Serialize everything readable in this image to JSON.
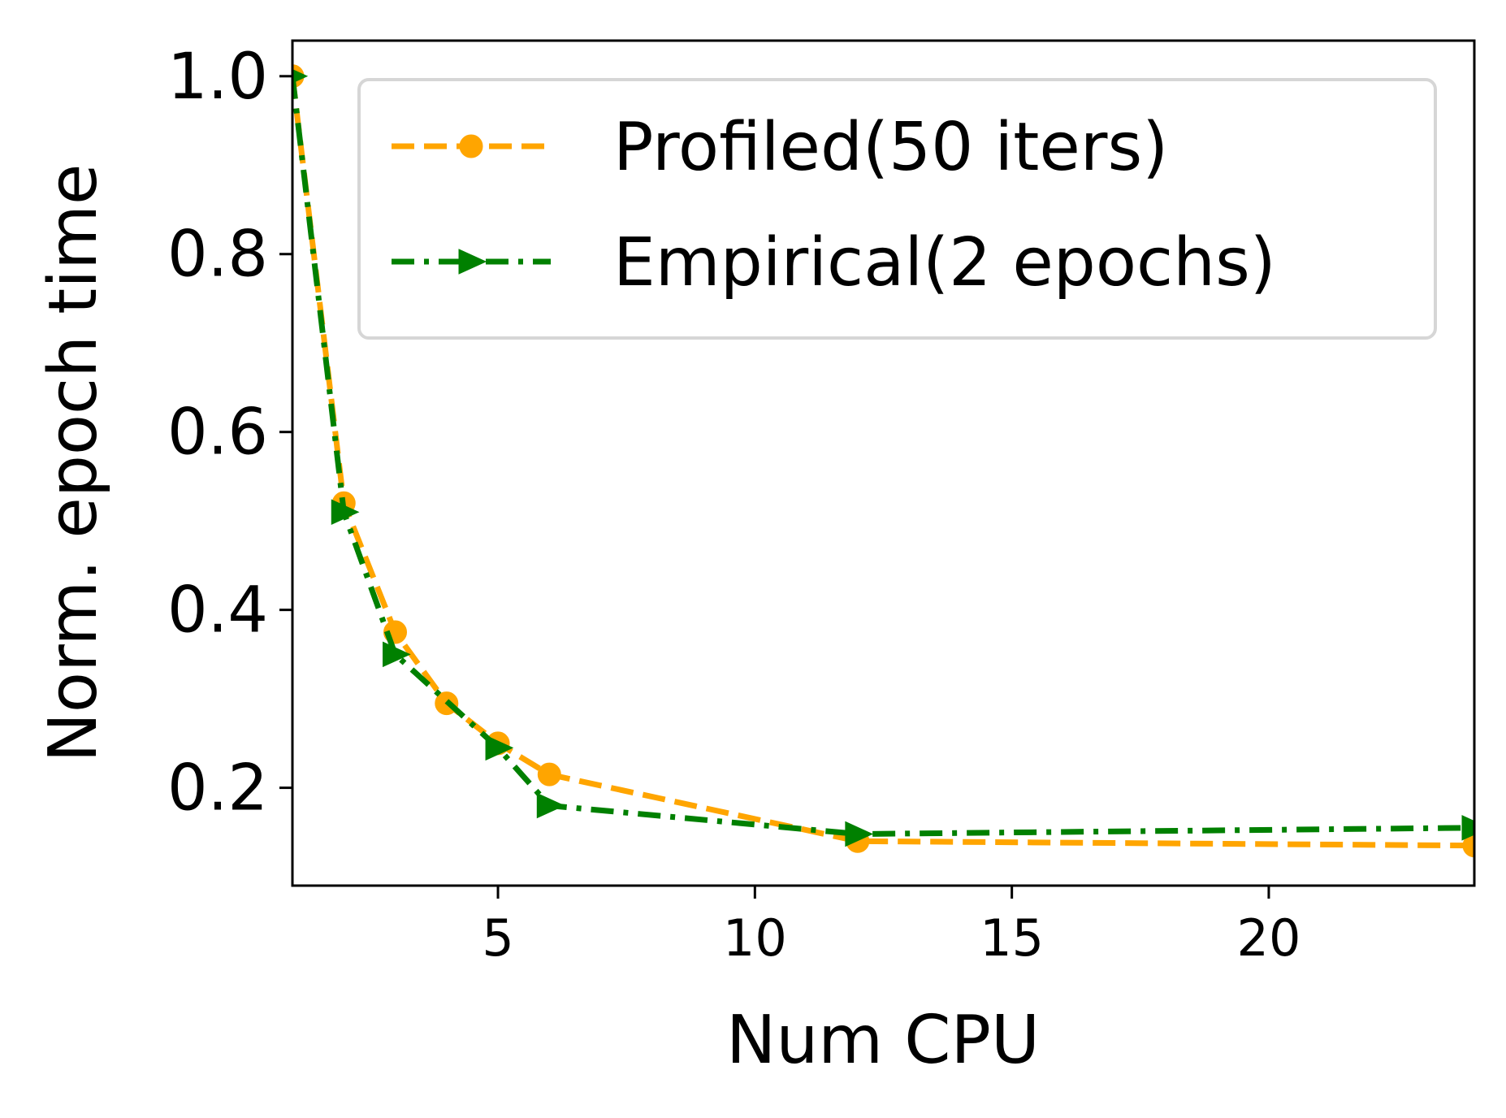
{
  "chart_data": {
    "type": "line",
    "xlabel": "Num CPU",
    "ylabel": "Norm. epoch time",
    "xlim": [
      1,
      24
    ],
    "ylim": [
      0.09,
      1.04
    ],
    "xticks": [
      5,
      10,
      15,
      20
    ],
    "yticks": [
      0.2,
      0.4,
      0.6,
      0.8,
      1.0
    ],
    "grid": false,
    "legend_position": "top-right",
    "series": [
      {
        "name": "Profiled(50 iters)",
        "color": "#FFA500",
        "linestyle": "dashed",
        "marker": "circle",
        "x": [
          1,
          2,
          3,
          4,
          5,
          6,
          12,
          24
        ],
        "y": [
          1.0,
          0.52,
          0.375,
          0.295,
          0.25,
          0.215,
          0.14,
          0.135
        ]
      },
      {
        "name": "Empirical(2 epochs)",
        "color": "#008000",
        "linestyle": "dashdot",
        "marker": "triangle-right",
        "x": [
          1,
          2,
          3,
          5,
          6,
          12,
          24
        ],
        "y": [
          1.0,
          0.51,
          0.35,
          0.245,
          0.18,
          0.148,
          0.155
        ]
      }
    ]
  }
}
